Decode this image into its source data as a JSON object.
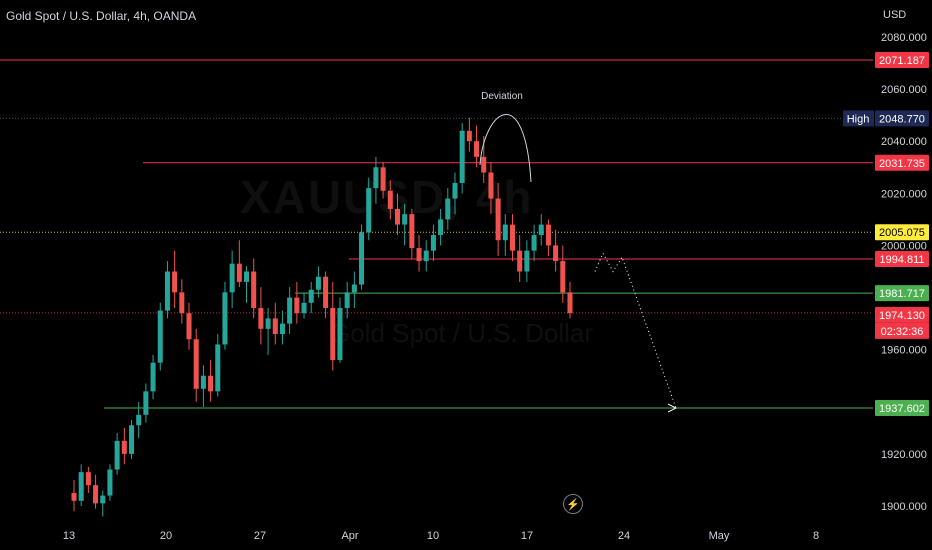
{
  "header": {
    "title": "Gold Spot / U.S. Dollar, 4h, OANDA",
    "currency": "USD"
  },
  "watermark": {
    "symbol": "XAUUSD, 4h",
    "description": "Gold Spot / U.S. Dollar"
  },
  "chart_data": {
    "type": "candlestick",
    "x_tick_labels": [
      "13",
      "20",
      "27",
      "Apr",
      "10",
      "17",
      "24",
      "May",
      "8"
    ],
    "y_tick_labels": [
      "2080.000",
      "2060.000",
      "2040.000",
      "2020.000",
      "2000.000",
      "1960.000",
      "1920.000",
      "1900.000"
    ],
    "ylim": [
      1897,
      2097
    ],
    "annotations": [
      {
        "text": "Deviation"
      }
    ],
    "horizontal_levels": [
      {
        "value": 2071.187,
        "label": "2071.187",
        "color": "#f23645"
      },
      {
        "value": 2048.77,
        "label": "2048.770",
        "tag": "High",
        "color": "#1e3a8a"
      },
      {
        "value": 2031.735,
        "label": "2031.735",
        "color": "#f23645"
      },
      {
        "value": 2005.075,
        "label": "2005.075",
        "color": "#ffeb3b"
      },
      {
        "value": 1994.811,
        "label": "1994.811",
        "color": "#f23645"
      },
      {
        "value": 1981.717,
        "label": "1981.717",
        "color": "#4caf50"
      },
      {
        "value": 1974.13,
        "label": "1974.130",
        "countdown": "02:32:36",
        "color": "#f23645"
      },
      {
        "value": 1937.602,
        "label": "1937.602",
        "color": "#4caf50"
      }
    ],
    "series": [
      {
        "values": [
          [
            1905,
            1910,
            1898,
            1902
          ],
          [
            1902,
            1916,
            1900,
            1913
          ],
          [
            1913,
            1915,
            1905,
            1908
          ],
          [
            1908,
            1912,
            1899,
            1901
          ],
          [
            1901,
            1906,
            1896,
            1904
          ],
          [
            1904,
            1916,
            1902,
            1914
          ],
          [
            1914,
            1928,
            1912,
            1925
          ],
          [
            1925,
            1930,
            1916,
            1920
          ],
          [
            1920,
            1933,
            1918,
            1931
          ],
          [
            1931,
            1940,
            1926,
            1935
          ],
          [
            1935,
            1947,
            1932,
            1944
          ],
          [
            1944,
            1958,
            1941,
            1955
          ],
          [
            1955,
            1978,
            1952,
            1975
          ],
          [
            1975,
            1994,
            1972,
            1990
          ],
          [
            1990,
            1998,
            1976,
            1982
          ],
          [
            1982,
            1987,
            1970,
            1974
          ],
          [
            1974,
            1978,
            1960,
            1964
          ],
          [
            1964,
            1968,
            1940,
            1945
          ],
          [
            1945,
            1954,
            1938,
            1950
          ],
          [
            1950,
            1956,
            1940,
            1944
          ],
          [
            1944,
            1966,
            1942,
            1962
          ],
          [
            1962,
            1986,
            1960,
            1982
          ],
          [
            1982,
            1998,
            1976,
            1993
          ],
          [
            1993,
            2002,
            1984,
            1986
          ],
          [
            1986,
            1992,
            1978,
            1990
          ],
          [
            1990,
            1995,
            1972,
            1976
          ],
          [
            1976,
            1984,
            1962,
            1968
          ],
          [
            1968,
            1976,
            1958,
            1972
          ],
          [
            1972,
            1978,
            1962,
            1966
          ],
          [
            1966,
            1975,
            1962,
            1970
          ],
          [
            1970,
            1984,
            1966,
            1980
          ],
          [
            1980,
            1986,
            1970,
            1974
          ],
          [
            1974,
            1982,
            1972,
            1978
          ],
          [
            1978,
            1986,
            1974,
            1983
          ],
          [
            1983,
            1992,
            1980,
            1988
          ],
          [
            1988,
            1990,
            1972,
            1976
          ],
          [
            1976,
            1986,
            1952,
            1956
          ],
          [
            1956,
            1980,
            1955,
            1976
          ],
          [
            1976,
            1986,
            1972,
            1982
          ],
          [
            1982,
            1990,
            1976,
            1985
          ],
          [
            1985,
            2008,
            1983,
            2005
          ],
          [
            2005,
            2026,
            2002,
            2022
          ],
          [
            2022,
            2034,
            2016,
            2030
          ],
          [
            2030,
            2032,
            2018,
            2021
          ],
          [
            2021,
            2025,
            2010,
            2014
          ],
          [
            2014,
            2020,
            2004,
            2008
          ],
          [
            2008,
            2016,
            2000,
            2012
          ],
          [
            2012,
            2014,
            1995,
            1999
          ],
          [
            1999,
            2004,
            1990,
            1994
          ],
          [
            1994,
            2002,
            1990,
            1998
          ],
          [
            1998,
            2008,
            1994,
            2004
          ],
          [
            2004,
            2014,
            2000,
            2010
          ],
          [
            2010,
            2022,
            2006,
            2018
          ],
          [
            2018,
            2028,
            2012,
            2024
          ],
          [
            2024,
            2047,
            2020,
            2044
          ],
          [
            2044,
            2049,
            2036,
            2040
          ],
          [
            2040,
            2046,
            2030,
            2034
          ],
          [
            2034,
            2042,
            2024,
            2028
          ],
          [
            2028,
            2032,
            2012,
            2018
          ],
          [
            2018,
            2024,
            1996,
            2002
          ],
          [
            2002,
            2012,
            1996,
            2008
          ],
          [
            2008,
            2012,
            1994,
            1998
          ],
          [
            1998,
            2004,
            1986,
            1990
          ],
          [
            1990,
            2002,
            1986,
            1998
          ],
          [
            1998,
            2008,
            1994,
            2004
          ],
          [
            2004,
            2012,
            2000,
            2008
          ],
          [
            2008,
            2010,
            1996,
            2000
          ],
          [
            2000,
            2006,
            1990,
            1994
          ],
          [
            1994,
            2000,
            1978,
            1982
          ],
          [
            1982,
            1986,
            1972,
            1974
          ]
        ]
      }
    ],
    "projection": {
      "points": [
        [
          1997,
          1990
        ],
        [
          2001,
          1997
        ],
        [
          1990,
          1937.6
        ]
      ]
    }
  }
}
